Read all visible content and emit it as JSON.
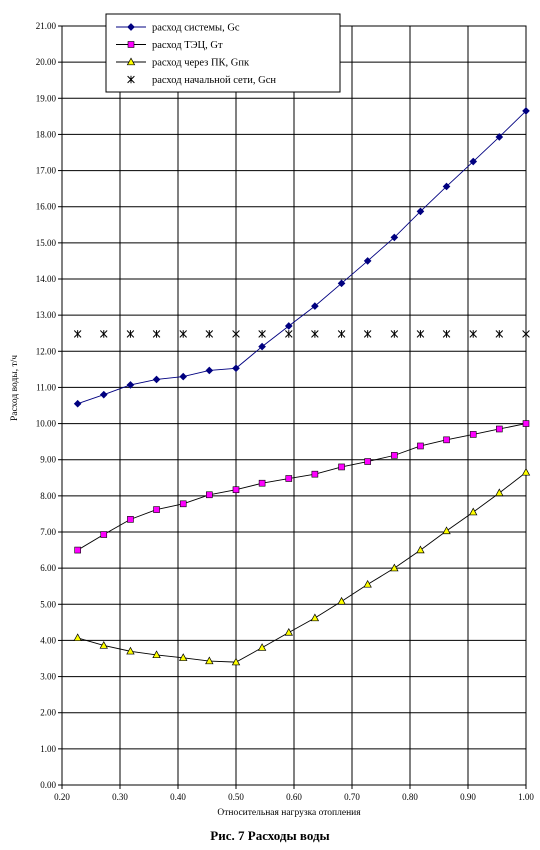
{
  "caption": "Рис.    7    Расходы воды",
  "chart_data": {
    "type": "line",
    "title": "",
    "xlabel": "Относительная нагрузка отопления",
    "ylabel": "Расход воды, т/ч",
    "xlim": [
      0.2,
      1.0
    ],
    "ylim": [
      0.0,
      21.0
    ],
    "x_ticks": [
      "0.20",
      "0.30",
      "0.40",
      "0.50",
      "0.60",
      "0.70",
      "0.80",
      "0.90",
      "1.00"
    ],
    "y_ticks": [
      "0.00",
      "1.00",
      "2.00",
      "3.00",
      "4.00",
      "5.00",
      "6.00",
      "7.00",
      "8.00",
      "9.00",
      "10.00",
      "11.00",
      "12.00",
      "13.00",
      "14.00",
      "15.00",
      "16.00",
      "17.00",
      "18.00",
      "19.00",
      "20.00",
      "21.00"
    ],
    "grid": true,
    "legend_position": "top-left",
    "x": [
      0.227,
      0.272,
      0.318,
      0.363,
      0.409,
      0.454,
      0.5,
      0.545,
      0.591,
      0.636,
      0.682,
      0.727,
      0.773,
      0.818,
      0.863,
      0.909,
      0.954,
      1.0
    ],
    "series": [
      {
        "name": "расход системы, Gc",
        "marker": "diamond",
        "color": "#000080",
        "values": [
          10.55,
          10.8,
          11.07,
          11.22,
          11.3,
          11.47,
          11.53,
          12.13,
          12.7,
          13.25,
          13.88,
          14.5,
          15.15,
          15.87,
          16.56,
          17.25,
          17.93,
          18.65
        ]
      },
      {
        "name": "расход ТЭЦ, Gт",
        "marker": "square",
        "color": "#ff00ff",
        "values": [
          6.5,
          6.93,
          7.35,
          7.62,
          7.78,
          8.03,
          8.17,
          8.35,
          8.48,
          8.6,
          8.8,
          8.95,
          9.12,
          9.38,
          9.55,
          9.7,
          9.85,
          10.0
        ]
      },
      {
        "name": "расход через ПК, Gпк",
        "marker": "triangle",
        "color": "#ffff00",
        "values": [
          4.07,
          3.86,
          3.7,
          3.6,
          3.52,
          3.43,
          3.4,
          3.8,
          4.22,
          4.62,
          5.08,
          5.55,
          6.0,
          6.5,
          7.03,
          7.55,
          8.08,
          8.65
        ]
      },
      {
        "name": "расход начальной сети, Gсн",
        "marker": "star",
        "color": "#000000",
        "values": [
          12.48,
          12.48,
          12.48,
          12.48,
          12.48,
          12.48,
          12.48,
          12.48,
          12.48,
          12.48,
          12.48,
          12.48,
          12.48,
          12.48,
          12.48,
          12.48,
          12.48,
          12.48
        ]
      }
    ]
  }
}
